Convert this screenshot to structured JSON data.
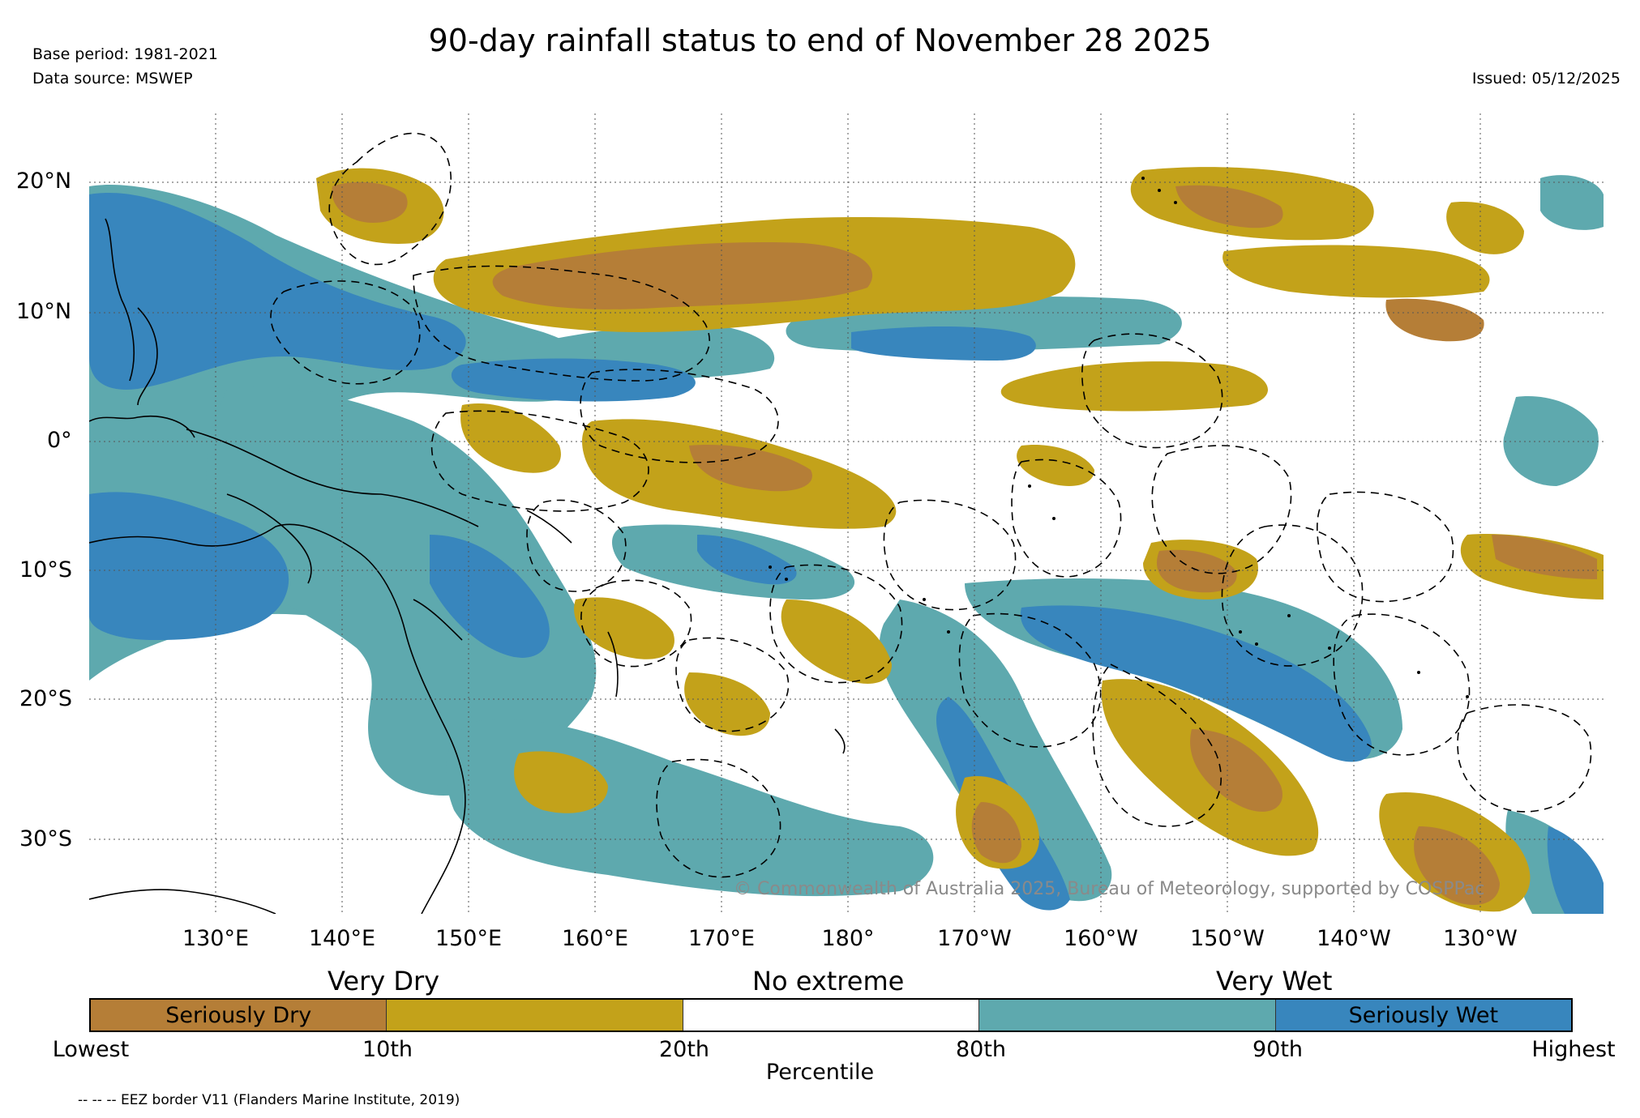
{
  "header": {
    "title": "90-day rainfall status to end of November 28 2025",
    "base_period": "Base period: 1981-2021",
    "data_source": "Data source: MSWEP",
    "issued": "Issued: 05/12/2025"
  },
  "map": {
    "lat_labels": [
      "20°N",
      "10°N",
      "0°",
      "10°S",
      "20°S",
      "30°S"
    ],
    "lon_labels": [
      "130°E",
      "140°E",
      "150°E",
      "160°E",
      "170°E",
      "180°",
      "170°W",
      "160°W",
      "150°W",
      "140°W",
      "130°W"
    ],
    "copyright": "© Commonwealth of Australia 2025, Bureau of Meteorology, supported by COSPPac",
    "lat_range": [
      -36,
      25
    ],
    "lon_range": [
      120,
      240
    ],
    "grid": true
  },
  "legend": {
    "categories": [
      "Very Dry",
      "No extreme",
      "Very Wet"
    ],
    "segments": [
      {
        "label": "Seriously Dry",
        "color": "#b57e37"
      },
      {
        "label": "",
        "color": "#c3a21a"
      },
      {
        "label": "",
        "color": "#ffffff"
      },
      {
        "label": "",
        "color": "#5ea9ae"
      },
      {
        "label": "Seriously Wet",
        "color": "#3886bd"
      }
    ],
    "ticks": [
      "Lowest",
      "10th",
      "20th",
      "80th",
      "90th",
      "Highest"
    ],
    "axis_label": "Percentile",
    "eez_note": "-- -- -- EEZ border V11 (Flanders Marine Institute, 2019)"
  },
  "colors": {
    "seriously_dry": "#b57e37",
    "very_dry": "#c3a21a",
    "very_wet": "#5ea9ae",
    "seriously_wet": "#3886bd"
  }
}
